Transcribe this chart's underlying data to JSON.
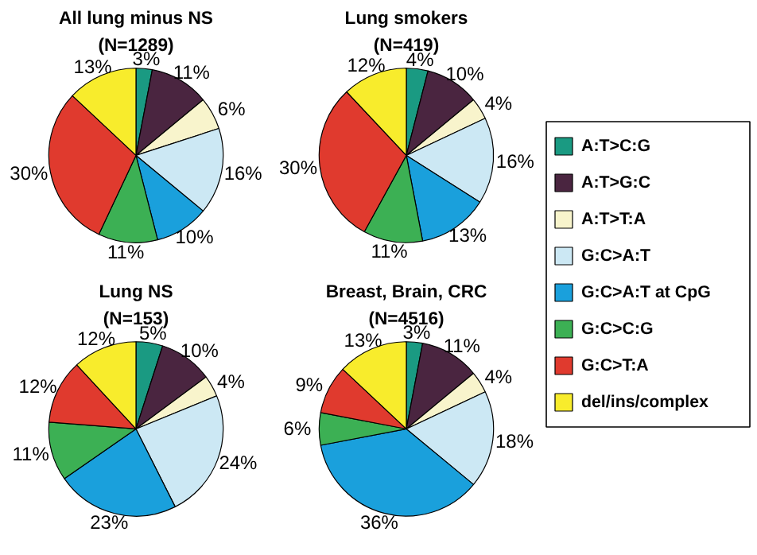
{
  "chart_data": [
    {
      "type": "pie",
      "title": "All lung minus NS",
      "subtitle": "(N=1289)",
      "categories": [
        "A:T>C:G",
        "A:T>G:C",
        "A:T>T:A",
        "G:C>A:T",
        "G:C>A:T at CpG",
        "G:C>C:G",
        "G:C>T:A",
        "del/ins/complex"
      ],
      "values": [
        3,
        11,
        6,
        16,
        10,
        11,
        30,
        13
      ],
      "value_labels": [
        "3%",
        "11%",
        "6%",
        "16%",
        "10%",
        "11%",
        "30%",
        "13%"
      ],
      "colors": [
        "#1a9a82",
        "#4a2540",
        "#f8f4cc",
        "#cce8f4",
        "#1aa0dc",
        "#3cb054",
        "#e03a2e",
        "#f8ec2c"
      ],
      "legend": "right"
    },
    {
      "type": "pie",
      "title": "Lung smokers",
      "subtitle": "(N=419)",
      "values": [
        4,
        10,
        4,
        16,
        13,
        11,
        30,
        12
      ],
      "value_labels": [
        "4%",
        "10%",
        "4%",
        "16%",
        "13%",
        "11%",
        "30%",
        "12%"
      ],
      "colors": [
        "#1a9a82",
        "#4a2540",
        "#f8f4cc",
        "#cce8f4",
        "#1aa0dc",
        "#3cb054",
        "#e03a2e",
        "#f8ec2c"
      ]
    },
    {
      "type": "pie",
      "title": "Lung NS",
      "subtitle": "(N=153)",
      "values": [
        5,
        10,
        4,
        24,
        23,
        11,
        12,
        12
      ],
      "value_labels": [
        "5%",
        "10%",
        "4%",
        "24%",
        "23%",
        "11%",
        "12%",
        "12%"
      ],
      "colors": [
        "#1a9a82",
        "#4a2540",
        "#f8f4cc",
        "#cce8f4",
        "#1aa0dc",
        "#3cb054",
        "#e03a2e",
        "#f8ec2c"
      ]
    },
    {
      "type": "pie",
      "title": "Breast, Brain, CRC",
      "subtitle": "(N=4516)",
      "values": [
        3,
        11,
        4,
        18,
        36,
        6,
        9,
        13
      ],
      "value_labels": [
        "3%",
        "11%",
        "4%",
        "18%",
        "36%",
        "6%",
        "9%",
        "13%"
      ],
      "colors": [
        "#1a9a82",
        "#4a2540",
        "#f8f4cc",
        "#cce8f4",
        "#1aa0dc",
        "#3cb054",
        "#e03a2e",
        "#f8ec2c"
      ]
    }
  ]
}
